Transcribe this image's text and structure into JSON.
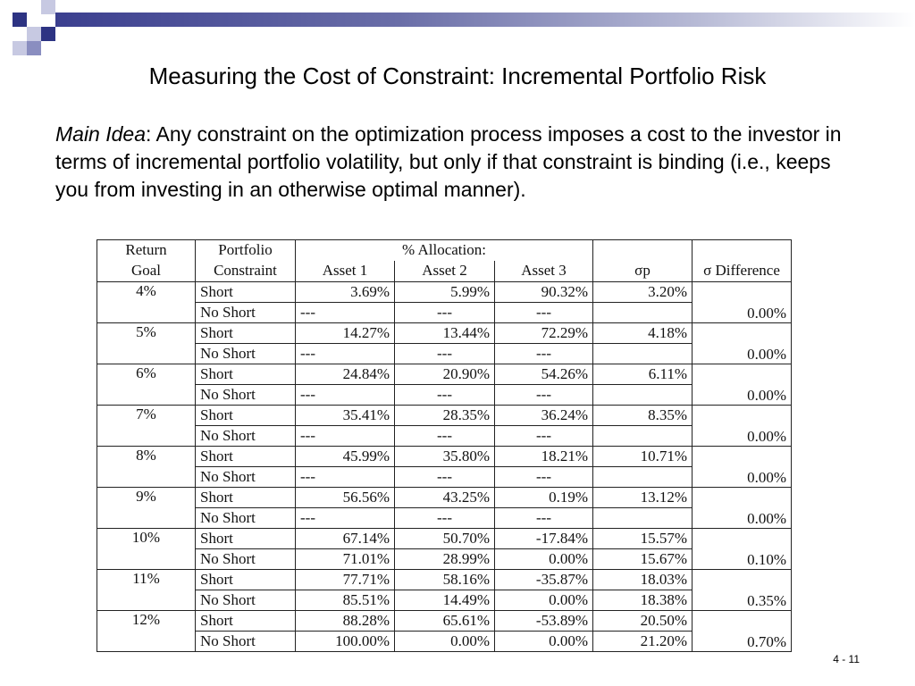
{
  "title": "Measuring the Cost of Constraint: Incremental Portfolio Risk",
  "main_idea": {
    "label": "Main Idea",
    "text": ": Any constraint on the optimization process imposes a cost to the investor in terms of incremental portfolio volatility, but only if that constraint is binding (i.e., keeps you from investing in an otherwise optimal manner)."
  },
  "table": {
    "headers": {
      "return_goal": [
        "Return",
        "Goal"
      ],
      "portfolio_constraint": [
        "Portfolio",
        "Constraint"
      ],
      "allocation": "% Allocation:",
      "asset1": "Asset 1",
      "asset2": "Asset 2",
      "asset3": "Asset 3",
      "sigma_p": "σp",
      "sigma_diff": "σ Difference"
    },
    "groups": [
      {
        "goal": "4%",
        "diff": "0.00%",
        "rows": [
          {
            "constraint": "Short",
            "a1": "3.69%",
            "a2": "5.99%",
            "a3": "90.32%",
            "sigma": "3.20%"
          },
          {
            "constraint": "No Short",
            "a1": "---",
            "a2": "---",
            "a3": "---",
            "sigma": ""
          }
        ]
      },
      {
        "goal": "5%",
        "diff": "0.00%",
        "rows": [
          {
            "constraint": "Short",
            "a1": "14.27%",
            "a2": "13.44%",
            "a3": "72.29%",
            "sigma": "4.18%"
          },
          {
            "constraint": "No Short",
            "a1": "---",
            "a2": "---",
            "a3": "---",
            "sigma": ""
          }
        ]
      },
      {
        "goal": "6%",
        "diff": "0.00%",
        "rows": [
          {
            "constraint": "Short",
            "a1": "24.84%",
            "a2": "20.90%",
            "a3": "54.26%",
            "sigma": "6.11%"
          },
          {
            "constraint": "No Short",
            "a1": "---",
            "a2": "---",
            "a3": "---",
            "sigma": ""
          }
        ]
      },
      {
        "goal": "7%",
        "diff": "0.00%",
        "rows": [
          {
            "constraint": "Short",
            "a1": "35.41%",
            "a2": "28.35%",
            "a3": "36.24%",
            "sigma": "8.35%"
          },
          {
            "constraint": "No Short",
            "a1": "---",
            "a2": "---",
            "a3": "---",
            "sigma": ""
          }
        ]
      },
      {
        "goal": "8%",
        "diff": "0.00%",
        "rows": [
          {
            "constraint": "Short",
            "a1": "45.99%",
            "a2": "35.80%",
            "a3": "18.21%",
            "sigma": "10.71%"
          },
          {
            "constraint": "No Short",
            "a1": "---",
            "a2": "---",
            "a3": "---",
            "sigma": ""
          }
        ]
      },
      {
        "goal": "9%",
        "diff": "0.00%",
        "rows": [
          {
            "constraint": "Short",
            "a1": "56.56%",
            "a2": "43.25%",
            "a3": "0.19%",
            "sigma": "13.12%"
          },
          {
            "constraint": "No Short",
            "a1": "---",
            "a2": "---",
            "a3": "---",
            "sigma": ""
          }
        ]
      },
      {
        "goal": "10%",
        "diff": "0.10%",
        "rows": [
          {
            "constraint": "Short",
            "a1": "67.14%",
            "a2": "50.70%",
            "a3": "-17.84%",
            "sigma": "15.57%"
          },
          {
            "constraint": "No Short",
            "a1": "71.01%",
            "a2": "28.99%",
            "a3": "0.00%",
            "sigma": "15.67%"
          }
        ]
      },
      {
        "goal": "11%",
        "diff": "0.35%",
        "rows": [
          {
            "constraint": "Short",
            "a1": "77.71%",
            "a2": "58.16%",
            "a3": "-35.87%",
            "sigma": "18.03%"
          },
          {
            "constraint": "No Short",
            "a1": "85.51%",
            "a2": "14.49%",
            "a3": "0.00%",
            "sigma": "18.38%"
          }
        ]
      },
      {
        "goal": "12%",
        "diff": "0.70%",
        "rows": [
          {
            "constraint": "Short",
            "a1": "88.28%",
            "a2": "65.61%",
            "a3": "-53.89%",
            "sigma": "20.50%"
          },
          {
            "constraint": "No Short",
            "a1": "100.00%",
            "a2": "0.00%",
            "a3": "0.00%",
            "sigma": "21.20%"
          }
        ]
      }
    ]
  },
  "slide_number": "4 - 11",
  "colors": {
    "bar_dark": "#3b3f8f",
    "sq_dark": "#2d3383",
    "sq_mid": "#8a8ec0",
    "sq_light": "#c7c9e2"
  }
}
